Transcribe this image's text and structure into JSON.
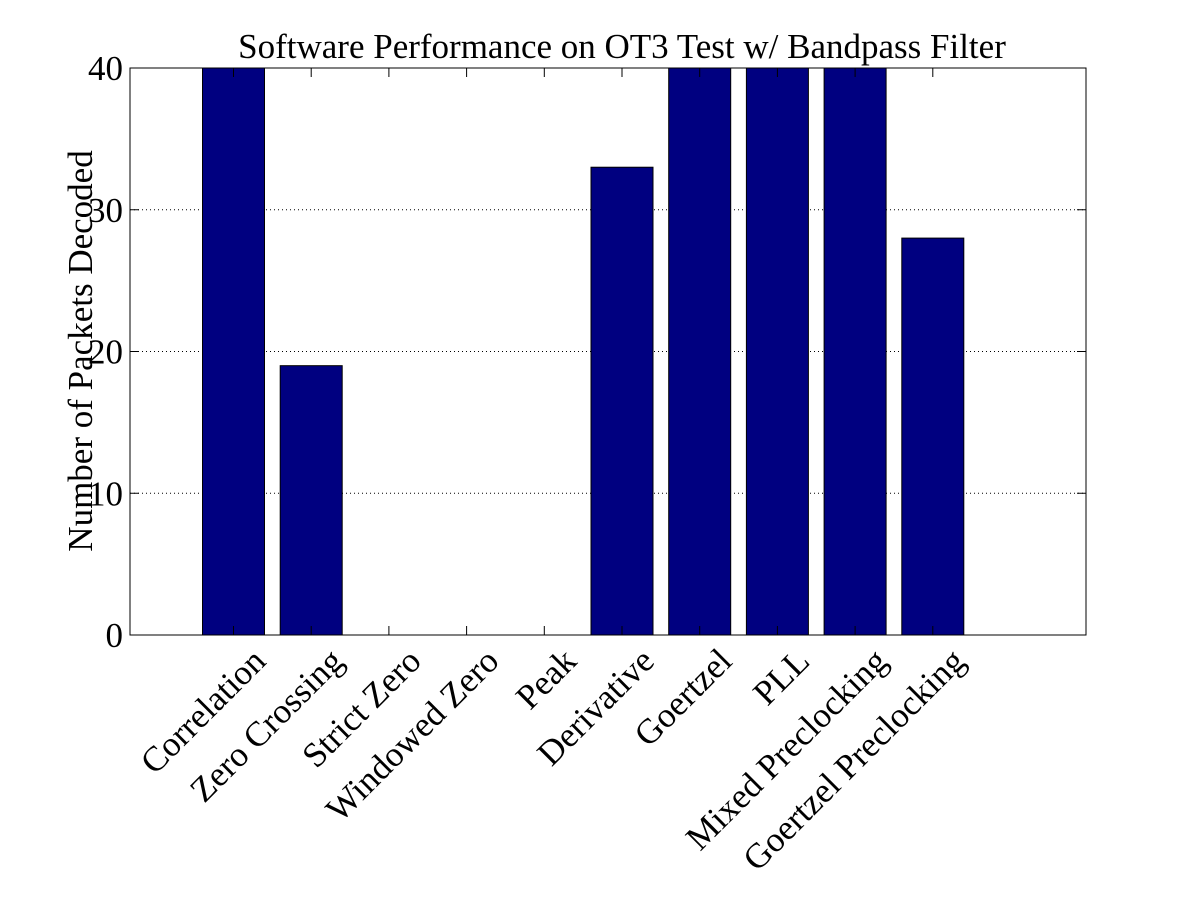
{
  "chart_data": {
    "type": "bar",
    "title": "Software Performance on OT3 Test w/ Bandpass Filter",
    "xlabel": "",
    "ylabel": "Number of Packets Decoded",
    "categories": [
      "Correlation",
      "Zero Crossing",
      "Strict Zero",
      "Windowed Zero",
      "Peak",
      "Derivative",
      "Goertzel",
      "PLL",
      "Mixed Preclocking",
      "Goertzel Preclocking"
    ],
    "values": [
      40,
      19,
      0,
      0,
      0,
      33,
      40,
      40,
      40,
      28
    ],
    "ylim": [
      0,
      40
    ],
    "yticks": [
      "0",
      "10",
      "20",
      "30",
      "40"
    ],
    "grid": "y-dotted",
    "legend": "none",
    "bar_color": "#000080"
  }
}
